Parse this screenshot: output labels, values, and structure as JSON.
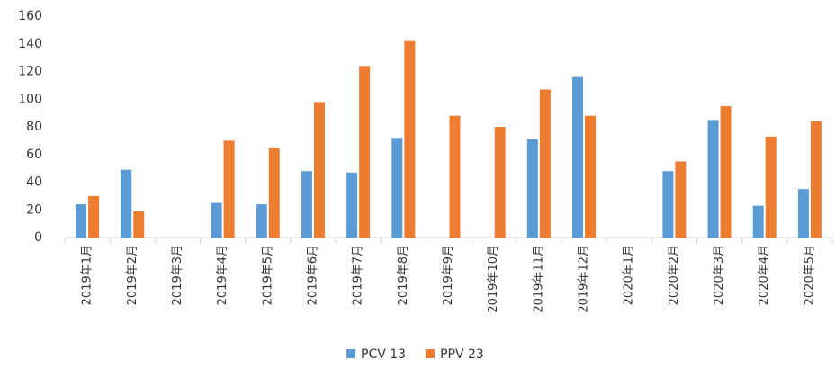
{
  "chart_data": {
    "type": "bar",
    "categories": [
      "2019年1月",
      "2019年2月",
      "2019年3月",
      "2019年4月",
      "2019年5月",
      "2019年6月",
      "2019年7月",
      "2019年8月",
      "2019年9月",
      "2019年10月",
      "2019年11月",
      "2019年12月",
      "2020年1月",
      "2020年2月",
      "2020年3月",
      "2020年4月",
      "2020年5月"
    ],
    "series": [
      {
        "name": "PCV 13",
        "color": "#5b9bd5",
        "values": [
          24,
          49,
          0,
          25,
          24,
          48,
          47,
          72,
          0,
          0,
          71,
          116,
          0,
          48,
          85,
          23,
          35
        ]
      },
      {
        "name": "PPV 23",
        "color": "#ed7d31",
        "values": [
          30,
          19,
          0,
          70,
          65,
          98,
          124,
          142,
          88,
          80,
          107,
          88,
          0,
          55,
          95,
          73,
          84
        ]
      }
    ],
    "ylim": [
      0,
      160
    ],
    "yticks": [
      0,
      20,
      40,
      60,
      80,
      100,
      120,
      140,
      160
    ],
    "grid": false,
    "legend": "bottom"
  }
}
